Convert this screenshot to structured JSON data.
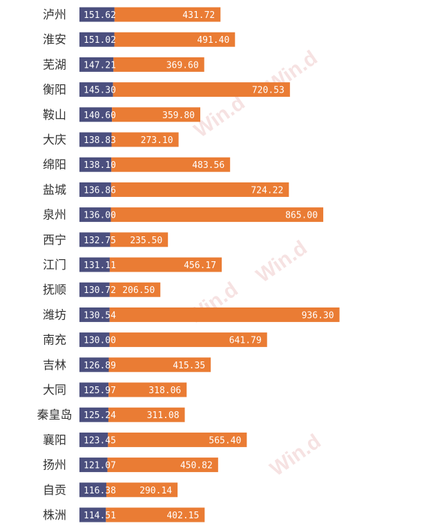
{
  "chart_data": {
    "type": "bar",
    "orientation": "horizontal",
    "stacked": true,
    "categories": [
      "泸州",
      "淮安",
      "芜湖",
      "衡阳",
      "鞍山",
      "大庆",
      "绵阳",
      "盐城",
      "泉州",
      "西宁",
      "江门",
      "抚顺",
      "潍坊",
      "南充",
      "吉林",
      "大同",
      "秦皇岛",
      "襄阳",
      "扬州",
      "自贡",
      "株洲"
    ],
    "series": [
      {
        "color": "#4b4f7e",
        "values": [
          151.62,
          151.02,
          147.21,
          145.3,
          140.6,
          138.83,
          138.1,
          136.86,
          136.0,
          132.75,
          131.11,
          130.72,
          130.54,
          130.0,
          126.89,
          125.97,
          125.24,
          123.45,
          121.07,
          116.38,
          114.51
        ]
      },
      {
        "color": "#ea7c34",
        "values": [
          431.72,
          491.4,
          369.6,
          720.53,
          359.8,
          273.1,
          483.56,
          724.22,
          865.0,
          235.5,
          456.17,
          206.5,
          936.3,
          641.79,
          415.35,
          318.06,
          311.08,
          565.4,
          450.82,
          290.14,
          402.15
        ]
      }
    ],
    "watermark": "Win.d",
    "grid": false,
    "legend": "none"
  }
}
